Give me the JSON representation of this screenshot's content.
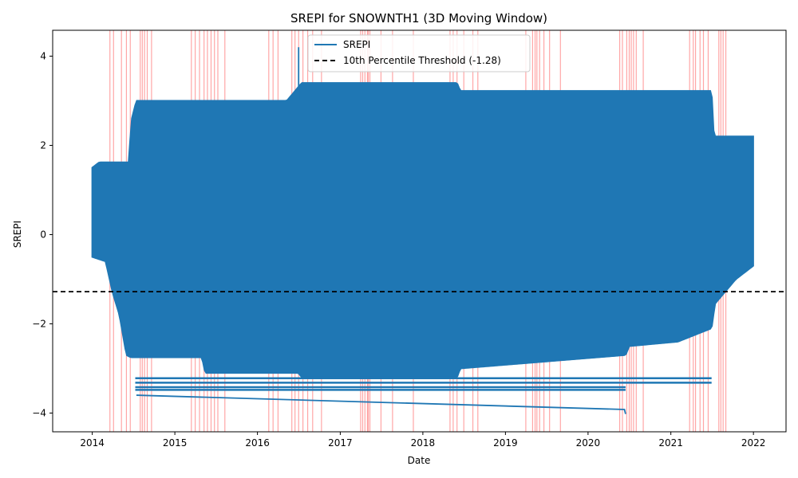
{
  "chart_data": {
    "type": "line",
    "title": "SREPI for SNOWNTH1 (3D Moving Window)",
    "xlabel": "Date",
    "ylabel": "SREPI",
    "x_axis_type": "date",
    "xlim": [
      "2013-07-10",
      "2022-05-25"
    ],
    "ylim": [
      -4.42,
      4.58
    ],
    "x_ticks": [
      "2014",
      "2015",
      "2016",
      "2017",
      "2018",
      "2019",
      "2020",
      "2021",
      "2022"
    ],
    "y_ticks": [
      {
        "value": -4,
        "label": "−4"
      },
      {
        "value": -2,
        "label": "−2"
      },
      {
        "value": 0,
        "label": "0"
      },
      {
        "value": 2,
        "label": "2"
      },
      {
        "value": 4,
        "label": "4"
      }
    ],
    "grid": false,
    "legend_position": "top-center",
    "legend": [
      "SREPI",
      "10th Percentile Threshold (-1.28)"
    ],
    "threshold": {
      "name": "10th Percentile Threshold (-1.28)",
      "value": -1.28,
      "style": "dashed",
      "color": "#000000"
    },
    "series": [
      {
        "name": "SREPI",
        "color": "#1f77b4",
        "dense_block": {
          "start": "2014-01-01",
          "end": "2021-12-31",
          "envelope_top": [
            [
              "2014-01-01",
              1.5
            ],
            [
              "2014-02-01",
              1.62
            ],
            [
              "2014-06-15",
              1.62
            ],
            [
              "2014-06-20",
              2.5
            ],
            [
              "2014-07-15",
              3.0
            ],
            [
              "2016-05-10",
              3.0
            ],
            [
              "2016-07-15",
              3.4
            ],
            [
              "2018-06-01",
              3.4
            ],
            [
              "2018-06-15",
              3.22
            ],
            [
              "2021-06-30",
              3.22
            ],
            [
              "2021-07-10",
              2.2
            ],
            [
              "2021-12-31",
              2.2
            ]
          ],
          "envelope_bottom": [
            [
              "2014-01-01",
              -0.5
            ],
            [
              "2014-03-01",
              -0.6
            ],
            [
              "2014-04-01",
              -1.3
            ],
            [
              "2014-05-01",
              -1.8
            ],
            [
              "2014-06-01",
              -2.7
            ],
            [
              "2014-06-20",
              -2.75
            ],
            [
              "2015-05-01",
              -2.75
            ],
            [
              "2015-05-15",
              -3.1
            ],
            [
              "2016-06-30",
              -3.1
            ],
            [
              "2016-07-15",
              -3.2
            ],
            [
              "2018-06-01",
              -3.2
            ],
            [
              "2018-06-15",
              -3.0
            ],
            [
              "2020-06-15",
              -2.7
            ],
            [
              "2020-07-01",
              -2.5
            ],
            [
              "2021-02-01",
              -2.4
            ],
            [
              "2021-06-30",
              -2.1
            ],
            [
              "2021-07-15",
              -1.55
            ],
            [
              "2021-10-15",
              -1.0
            ],
            [
              "2021-12-31",
              -0.7
            ]
          ],
          "horizontal_bands": [
            {
              "start": "2014-07-10",
              "end": "2021-06-30",
              "value": -3.22
            },
            {
              "start": "2014-07-10",
              "end": "2021-06-30",
              "value": -3.32
            },
            {
              "start": "2014-07-10",
              "end": "2020-06-15",
              "value": -3.42
            },
            {
              "start": "2014-07-10",
              "end": "2020-06-15",
              "value": -3.48
            }
          ],
          "spike": {
            "date": "2016-07-01",
            "value": 4.2
          },
          "low_line": [
            [
              "2014-07-15",
              -3.6
            ],
            [
              "2020-06-10",
              -3.92
            ],
            [
              "2020-06-15",
              -4.02
            ]
          ]
        }
      }
    ],
    "drought_spans": {
      "color": "#ff0000",
      "dates": [
        "2014-03-20",
        "2014-04-05",
        "2014-05-10",
        "2014-06-01",
        "2014-06-18",
        "2014-08-01",
        "2014-08-10",
        "2014-08-20",
        "2014-09-01",
        "2014-09-20",
        "2015-03-15",
        "2015-04-01",
        "2015-04-20",
        "2015-05-10",
        "2015-05-25",
        "2015-06-10",
        "2015-06-25",
        "2015-07-10",
        "2015-08-10",
        "2016-02-20",
        "2016-03-10",
        "2016-04-01",
        "2016-06-01",
        "2016-06-15",
        "2016-07-01",
        "2016-07-20",
        "2016-08-10",
        "2016-09-01",
        "2016-10-10",
        "2017-04-01",
        "2017-04-10",
        "2017-04-20",
        "2017-05-01",
        "2017-05-05",
        "2017-05-12",
        "2017-06-30",
        "2017-08-20",
        "2017-11-20",
        "2018-05-01",
        "2018-05-15",
        "2018-06-01",
        "2018-07-01",
        "2018-08-10",
        "2018-09-01",
        "2019-04-01",
        "2019-05-01",
        "2019-05-12",
        "2019-05-20",
        "2019-06-01",
        "2019-06-20",
        "2019-07-15",
        "2019-09-01",
        "2020-05-20",
        "2020-06-01",
        "2020-06-20",
        "2020-07-01",
        "2020-07-10",
        "2020-07-20",
        "2020-08-01",
        "2020-09-01",
        "2021-03-25",
        "2021-04-10",
        "2021-04-20",
        "2021-05-10",
        "2021-05-25",
        "2021-06-15",
        "2021-08-01",
        "2021-08-10",
        "2021-08-20",
        "2021-09-01"
      ]
    }
  }
}
